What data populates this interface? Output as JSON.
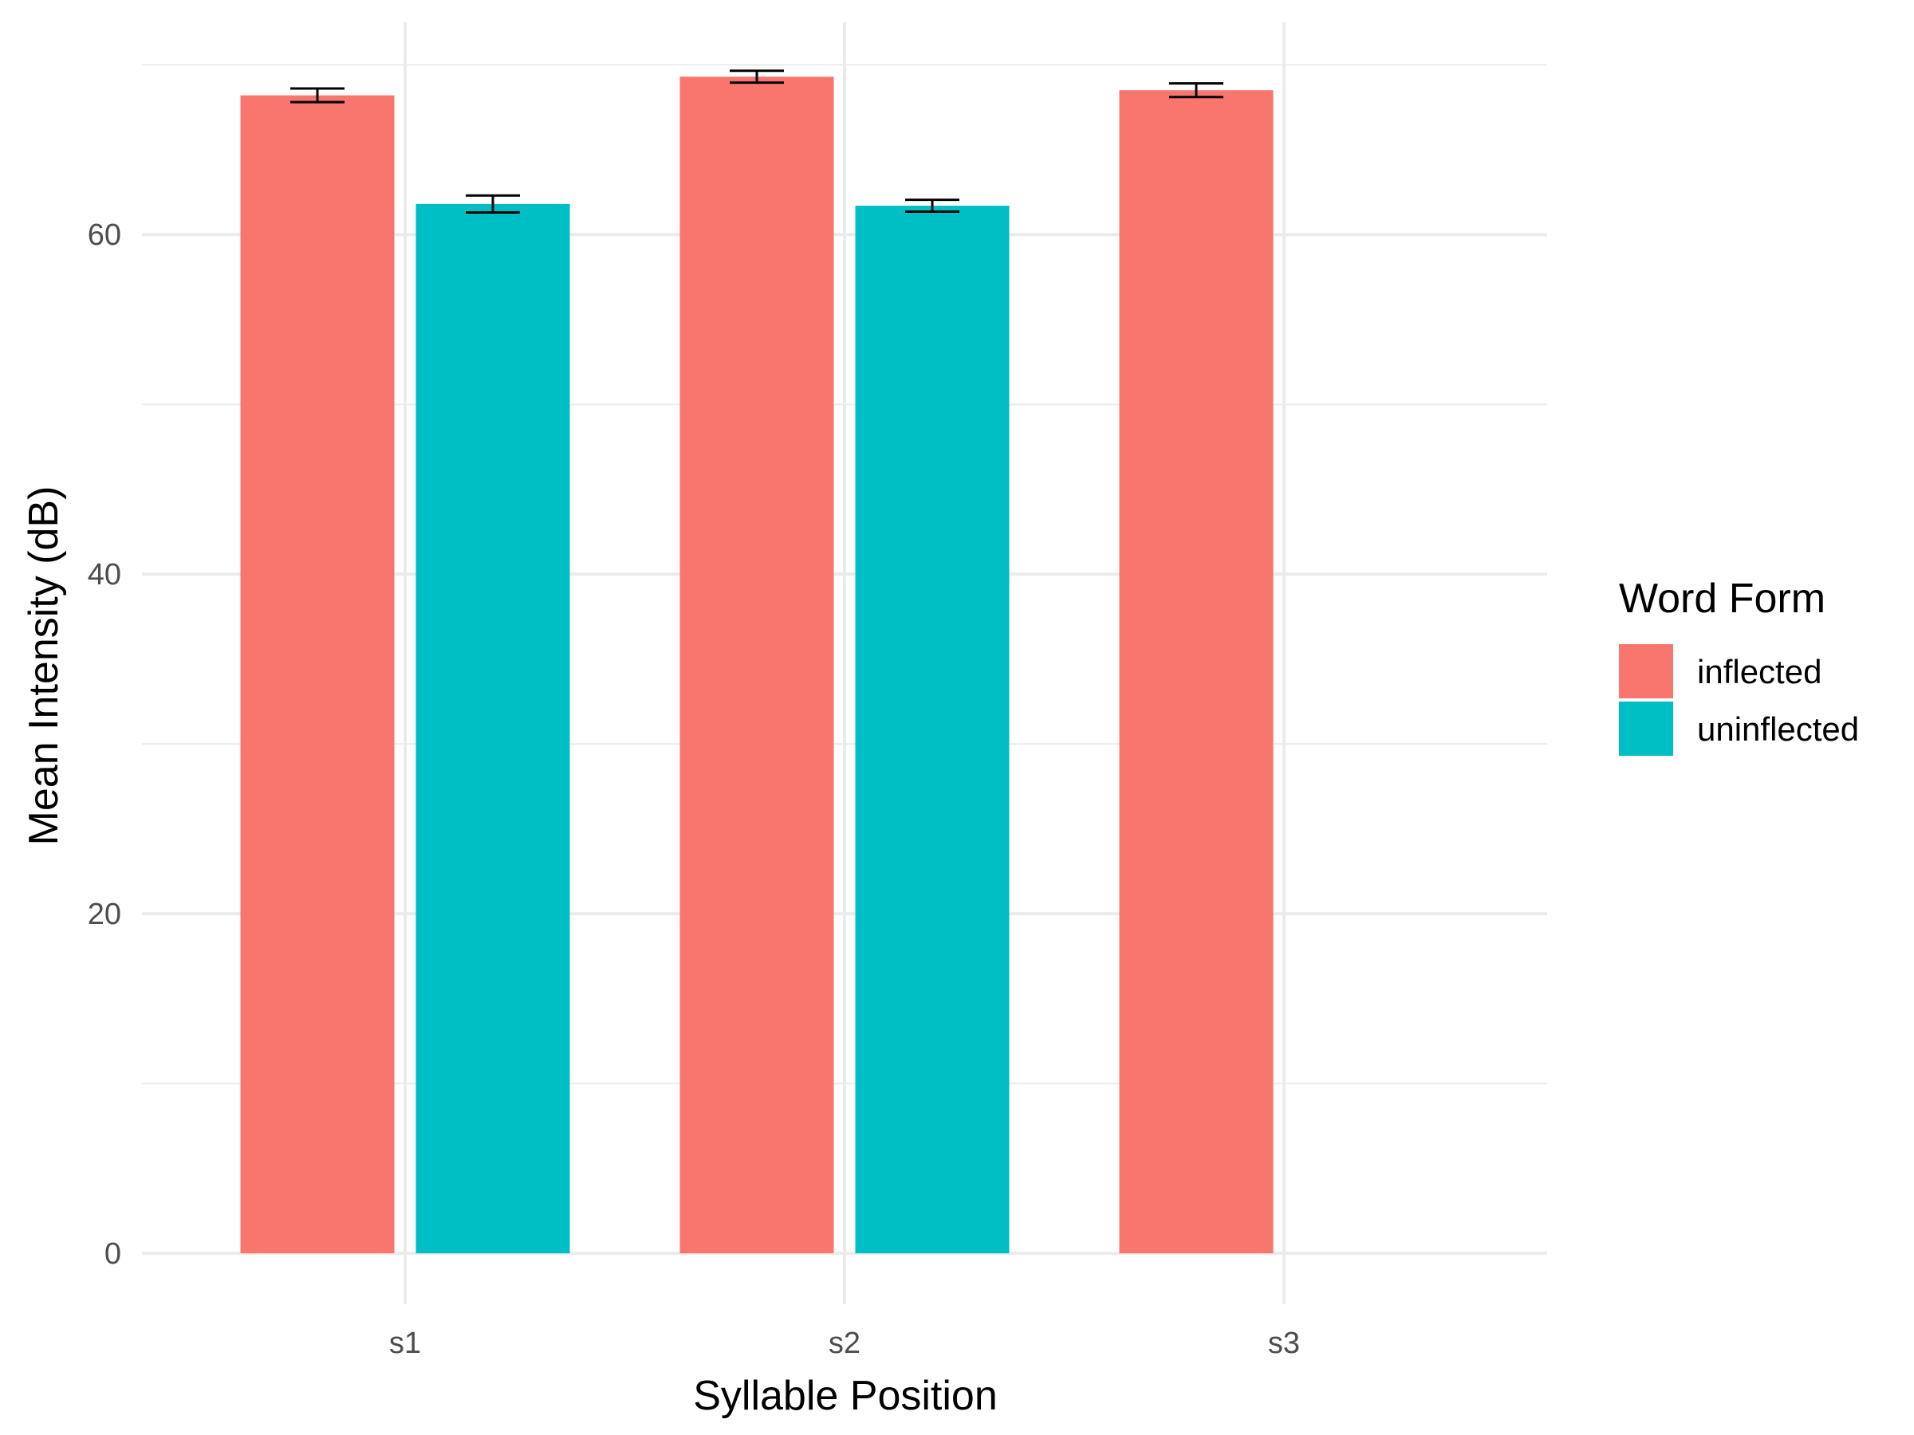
{
  "chart_data": {
    "type": "bar",
    "title": "",
    "xlabel": "Syllable Position",
    "ylabel": "Mean Intensity (dB)",
    "categories": [
      "s1",
      "s2",
      "s3"
    ],
    "ylim": [
      -3,
      72.5
    ],
    "yticks": [
      0,
      20,
      40,
      60
    ],
    "grid": true,
    "legend": {
      "title": "Word Form",
      "position": "right"
    },
    "series": [
      {
        "name": "inflected",
        "color": "#F8766D",
        "values": [
          68.2,
          69.3,
          68.5
        ],
        "error": [
          0.4,
          0.35,
          0.4
        ]
      },
      {
        "name": "uninflected",
        "color": "#00BFC4",
        "values": [
          61.8,
          61.7,
          null
        ],
        "error": [
          0.5,
          0.35,
          null
        ]
      }
    ]
  }
}
